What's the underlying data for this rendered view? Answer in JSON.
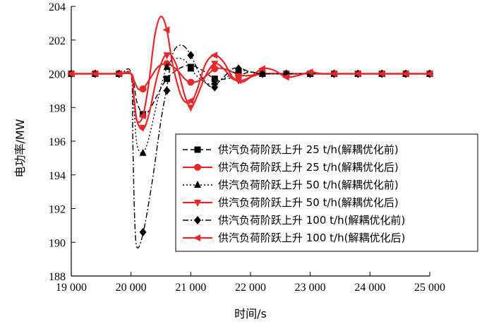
{
  "chart_data": {
    "type": "line",
    "title": "",
    "xlabel": "时间/s",
    "ylabel": "电功率/MW",
    "xlim": [
      19000,
      25000
    ],
    "ylim": [
      188,
      204
    ],
    "xticks": [
      19000,
      20000,
      21000,
      22000,
      23000,
      24000,
      25000
    ],
    "xtick_labels": [
      "19 000",
      "20 000",
      "21 000",
      "22 000",
      "23 000",
      "24 000",
      "25 000"
    ],
    "yticks": [
      188,
      190,
      192,
      194,
      196,
      198,
      200,
      202,
      204
    ],
    "ytick_labels": [
      "188",
      "190",
      "192",
      "194",
      "196",
      "198",
      "200",
      "202",
      "204"
    ],
    "grid": false,
    "legend_position": "bottom-right",
    "series": [
      {
        "name": "供汽负荷阶跃上升 25 t/h(解耦优化前)",
        "color": "#000000",
        "dash": "dash",
        "marker": "square",
        "points": [
          [
            19000,
            200
          ],
          [
            19400,
            200
          ],
          [
            19800,
            200
          ],
          [
            20000,
            200
          ],
          [
            20050,
            199.4
          ],
          [
            20100,
            198.3
          ],
          [
            20200,
            197.6
          ],
          [
            20300,
            197.8
          ],
          [
            20450,
            198.8
          ],
          [
            20600,
            199.7
          ],
          [
            20800,
            200.3
          ],
          [
            21000,
            200.5
          ],
          [
            21200,
            200.2
          ],
          [
            21400,
            199.7
          ],
          [
            21600,
            199.7
          ],
          [
            21800,
            199.9
          ],
          [
            22000,
            200.1
          ],
          [
            22200,
            200
          ],
          [
            22600,
            200
          ],
          [
            23000,
            200
          ],
          [
            23400,
            200
          ],
          [
            23800,
            200
          ],
          [
            24200,
            200
          ],
          [
            24600,
            200
          ],
          [
            25000,
            200
          ]
        ],
        "markers": [
          [
            19000,
            200
          ],
          [
            19400,
            200
          ],
          [
            19800,
            200
          ],
          [
            20200,
            197.6
          ],
          [
            20600,
            199.7
          ],
          [
            21000,
            200.4
          ],
          [
            21400,
            199.7
          ],
          [
            21800,
            200.1
          ],
          [
            22200,
            200
          ],
          [
            22600,
            200
          ],
          [
            23000,
            200
          ],
          [
            23400,
            200
          ],
          [
            23800,
            200
          ],
          [
            24200,
            200
          ],
          [
            24600,
            200
          ],
          [
            25000,
            200
          ]
        ]
      },
      {
        "name": "供汽负荷阶跃上升 25 t/h(解耦优化后)",
        "color": "#e8272a",
        "dash": "solid",
        "marker": "circle",
        "points": [
          [
            19000,
            200
          ],
          [
            19400,
            200
          ],
          [
            19800,
            200
          ],
          [
            20000,
            200
          ],
          [
            20050,
            199.6
          ],
          [
            20120,
            199.1
          ],
          [
            20200,
            199.1
          ],
          [
            20300,
            199.6
          ],
          [
            20450,
            200.4
          ],
          [
            20600,
            200.6
          ],
          [
            20750,
            200.3
          ],
          [
            20900,
            199.7
          ],
          [
            21000,
            199.5
          ],
          [
            21150,
            199.6
          ],
          [
            21300,
            200
          ],
          [
            21400,
            200.3
          ],
          [
            21550,
            200.3
          ],
          [
            21700,
            200.1
          ],
          [
            21850,
            199.9
          ],
          [
            22000,
            199.9
          ],
          [
            22200,
            200
          ],
          [
            22600,
            200
          ],
          [
            23000,
            200
          ],
          [
            23400,
            200
          ],
          [
            23800,
            200
          ],
          [
            24200,
            200
          ],
          [
            24600,
            200
          ],
          [
            25000,
            200
          ]
        ],
        "markers": [
          [
            19000,
            200
          ],
          [
            19400,
            200
          ],
          [
            19800,
            200
          ],
          [
            20200,
            199.1
          ],
          [
            20600,
            200.6
          ],
          [
            21000,
            199.5
          ],
          [
            21400,
            200.3
          ],
          [
            21800,
            199.9
          ],
          [
            22200,
            200
          ],
          [
            22600,
            200
          ],
          [
            23000,
            200
          ],
          [
            23400,
            200
          ],
          [
            23800,
            200
          ],
          [
            24200,
            200
          ],
          [
            24600,
            200
          ],
          [
            25000,
            200
          ]
        ]
      },
      {
        "name": "供汽负荷阶跃上升 50 t/h(解耦优化前)",
        "color": "#000000",
        "dash": "dot",
        "marker": "triangle-up",
        "points": [
          [
            19000,
            200
          ],
          [
            19400,
            200
          ],
          [
            19800,
            200
          ],
          [
            20000,
            200
          ],
          [
            20050,
            198
          ],
          [
            20100,
            195.8
          ],
          [
            20200,
            195.3
          ],
          [
            20300,
            196.2
          ],
          [
            20450,
            198.5
          ],
          [
            20600,
            200.4
          ],
          [
            20750,
            200.9
          ],
          [
            20900,
            200.8
          ],
          [
            21000,
            200.3
          ],
          [
            21150,
            199.7
          ],
          [
            21300,
            199.4
          ],
          [
            21400,
            199.5
          ],
          [
            21600,
            199.8
          ],
          [
            21800,
            200.2
          ],
          [
            22000,
            200.1
          ],
          [
            22200,
            200
          ],
          [
            22600,
            200
          ],
          [
            23000,
            200
          ],
          [
            23400,
            200
          ],
          [
            23800,
            200
          ],
          [
            24200,
            200
          ],
          [
            24600,
            200
          ],
          [
            25000,
            200
          ]
        ],
        "markers": [
          [
            19000,
            200
          ],
          [
            19400,
            200
          ],
          [
            19800,
            200
          ],
          [
            20200,
            195.3
          ],
          [
            20600,
            200.4
          ],
          [
            21000,
            200.3
          ],
          [
            21400,
            199.5
          ],
          [
            21800,
            200.2
          ],
          [
            22200,
            200
          ],
          [
            22600,
            200
          ],
          [
            23000,
            200
          ],
          [
            23400,
            200
          ],
          [
            23800,
            200
          ],
          [
            24200,
            200
          ],
          [
            24600,
            200
          ],
          [
            25000,
            200
          ]
        ]
      },
      {
        "name": "供汽负荷阶跃上升 50 t/h(解耦优化后)",
        "color": "#e8272a",
        "dash": "solid",
        "marker": "triangle-down",
        "points": [
          [
            19000,
            200
          ],
          [
            19400,
            200
          ],
          [
            19800,
            200
          ],
          [
            20000,
            200
          ],
          [
            20050,
            198.6
          ],
          [
            20100,
            197.2
          ],
          [
            20200,
            196.7
          ],
          [
            20300,
            197.6
          ],
          [
            20450,
            200
          ],
          [
            20600,
            201.2
          ],
          [
            20750,
            200.6
          ],
          [
            20900,
            198.7
          ],
          [
            21000,
            198
          ],
          [
            21100,
            198.6
          ],
          [
            21250,
            199.9
          ],
          [
            21400,
            200.6
          ],
          [
            21550,
            200.3
          ],
          [
            21700,
            199.7
          ],
          [
            21850,
            199.6
          ],
          [
            22000,
            199.8
          ],
          [
            22200,
            200
          ],
          [
            22600,
            200
          ],
          [
            23000,
            200
          ],
          [
            23400,
            200
          ],
          [
            23800,
            200
          ],
          [
            24200,
            200
          ],
          [
            24600,
            200
          ],
          [
            25000,
            200
          ]
        ],
        "markers": [
          [
            19000,
            200
          ],
          [
            19400,
            200
          ],
          [
            19800,
            200
          ],
          [
            20200,
            196.8
          ],
          [
            20600,
            201.1
          ],
          [
            21000,
            198
          ],
          [
            21400,
            200.6
          ],
          [
            21800,
            199.6
          ],
          [
            22200,
            200
          ],
          [
            22600,
            200
          ],
          [
            23000,
            200
          ],
          [
            23400,
            200
          ],
          [
            23800,
            200
          ],
          [
            24200,
            200
          ],
          [
            24600,
            200
          ],
          [
            25000,
            200
          ]
        ]
      },
      {
        "name": "供汽负荷阶跃上升 100 t/h(解耦优化前)",
        "color": "#000000",
        "dash": "dashdot",
        "marker": "diamond",
        "points": [
          [
            19000,
            200
          ],
          [
            19400,
            200
          ],
          [
            19800,
            200
          ],
          [
            20000,
            200
          ],
          [
            20030,
            196
          ],
          [
            20060,
            191.5
          ],
          [
            20100,
            189.7
          ],
          [
            20200,
            190.5
          ],
          [
            20350,
            193.5
          ],
          [
            20500,
            197.2
          ],
          [
            20600,
            199.2
          ],
          [
            20700,
            201.2
          ],
          [
            20850,
            201.7
          ],
          [
            21000,
            201.1
          ],
          [
            21150,
            200
          ],
          [
            21300,
            199.3
          ],
          [
            21400,
            199.3
          ],
          [
            21550,
            199.8
          ],
          [
            21700,
            200.3
          ],
          [
            21850,
            200.3
          ],
          [
            22000,
            200.1
          ],
          [
            22200,
            200
          ],
          [
            22600,
            200
          ],
          [
            23000,
            200
          ],
          [
            23400,
            200
          ],
          [
            23800,
            200
          ],
          [
            24200,
            200
          ],
          [
            24600,
            200
          ],
          [
            25000,
            200
          ]
        ],
        "markers": [
          [
            19000,
            200
          ],
          [
            19400,
            200
          ],
          [
            19800,
            200
          ],
          [
            20200,
            190.6
          ],
          [
            20600,
            199
          ],
          [
            21000,
            201.1
          ],
          [
            21400,
            199.2
          ],
          [
            21800,
            200.3
          ],
          [
            22200,
            200
          ],
          [
            22600,
            200
          ],
          [
            23000,
            200
          ],
          [
            23400,
            200
          ],
          [
            23800,
            200
          ],
          [
            24200,
            200
          ],
          [
            24600,
            200
          ],
          [
            25000,
            200
          ]
        ]
      },
      {
        "name": "供汽负荷阶跃上升 100 t/h(解耦优化后)",
        "color": "#e8272a",
        "dash": "solid",
        "marker": "triangle-left",
        "points": [
          [
            19000,
            200
          ],
          [
            19400,
            200
          ],
          [
            19800,
            200
          ],
          [
            20000,
            200
          ],
          [
            20050,
            198.5
          ],
          [
            20100,
            197.2
          ],
          [
            20200,
            197.5
          ],
          [
            20300,
            199.5
          ],
          [
            20400,
            202.3
          ],
          [
            20500,
            203.4
          ],
          [
            20600,
            202.6
          ],
          [
            20700,
            200.5
          ],
          [
            20850,
            198.6
          ],
          [
            21000,
            198.3
          ],
          [
            21100,
            199
          ],
          [
            21250,
            200.6
          ],
          [
            21400,
            201.1
          ],
          [
            21550,
            200.7
          ],
          [
            21700,
            199.8
          ],
          [
            21850,
            199.5
          ],
          [
            22000,
            199.8
          ],
          [
            22200,
            200.3
          ],
          [
            22400,
            200.2
          ],
          [
            22600,
            199.8
          ],
          [
            22800,
            199.9
          ],
          [
            23000,
            200.1
          ],
          [
            23200,
            200
          ],
          [
            23400,
            200
          ],
          [
            23800,
            200
          ],
          [
            24200,
            200
          ],
          [
            24600,
            200
          ],
          [
            25000,
            200
          ]
        ],
        "markers": [
          [
            19000,
            200
          ],
          [
            19400,
            200
          ],
          [
            19800,
            200
          ],
          [
            20200,
            197.5
          ],
          [
            20600,
            202.6
          ],
          [
            21000,
            198.4
          ],
          [
            21400,
            201.1
          ],
          [
            21800,
            199.6
          ],
          [
            22200,
            200.3
          ],
          [
            22600,
            199.8
          ],
          [
            23000,
            200.1
          ],
          [
            23400,
            200
          ],
          [
            23800,
            200
          ],
          [
            24200,
            200
          ],
          [
            24600,
            200
          ],
          [
            25000,
            200
          ]
        ]
      }
    ]
  }
}
